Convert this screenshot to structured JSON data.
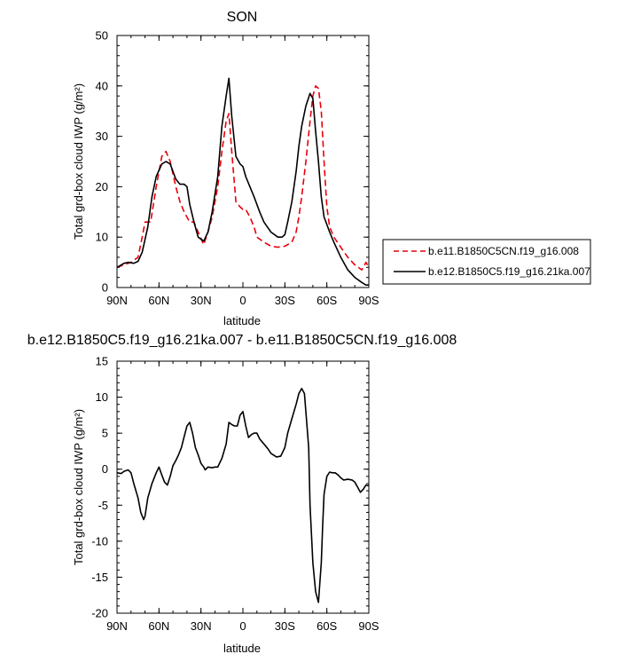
{
  "chart_data": [
    {
      "type": "line",
      "title": "SON",
      "xlabel": "latitude",
      "ylabel": "Total grd-box cloud IWP (g/m²)",
      "x_ticks": [
        "90N",
        "60N",
        "30N",
        "0",
        "30S",
        "60S",
        "90S"
      ],
      "x_tick_values": [
        90,
        60,
        30,
        0,
        -30,
        -60,
        -90
      ],
      "y_ticks": [
        "0",
        "10",
        "20",
        "30",
        "40",
        "50"
      ],
      "ylim": [
        0,
        50
      ],
      "xlim": [
        90,
        -90
      ],
      "legend_position": "right, outside plot",
      "series": [
        {
          "name": "b.e11.B1850C5CN.f19_g16.008",
          "color": "#e8000b",
          "dash": "dashed",
          "x": [
            90,
            85,
            80,
            75,
            72,
            70,
            66,
            62,
            58,
            55,
            52,
            48,
            45,
            42,
            38,
            35,
            32,
            28,
            25,
            22,
            18,
            15,
            12,
            10,
            8,
            5,
            2,
            0,
            -2,
            -5,
            -8,
            -10,
            -15,
            -20,
            -25,
            -30,
            -35,
            -38,
            -40,
            -42,
            -45,
            -48,
            -50,
            -52,
            -54,
            -56,
            -58,
            -60,
            -62,
            -65,
            -70,
            -75,
            -80,
            -85,
            -88,
            -90
          ],
          "y": [
            4,
            4.5,
            5,
            6,
            10,
            13,
            13,
            20,
            26,
            27,
            25,
            20,
            17,
            15,
            13,
            13,
            11,
            8.5,
            11,
            14,
            20,
            27,
            33,
            34.5,
            27,
            17,
            16,
            15.5,
            15.5,
            14,
            12,
            10,
            9,
            8.2,
            8,
            8.2,
            9,
            11,
            14,
            18,
            25,
            33,
            38,
            40,
            39.5,
            35,
            25,
            16,
            12,
            10,
            8,
            6,
            4.5,
            3.5,
            5,
            4
          ]
        },
        {
          "name": "b.e12.B1850C5.f19_g16.21ka.007",
          "color": "#000000",
          "dash": "solid",
          "x": [
            90,
            85,
            82,
            78,
            75,
            72,
            68,
            65,
            62,
            58,
            55,
            52,
            48,
            45,
            42,
            40,
            38,
            35,
            32,
            28,
            25,
            22,
            18,
            15,
            12,
            10,
            8,
            5,
            2,
            0,
            -2,
            -5,
            -8,
            -12,
            -15,
            -20,
            -25,
            -28,
            -30,
            -32,
            -35,
            -38,
            -40,
            -42,
            -45,
            -48,
            -50,
            -52,
            -54,
            -56,
            -58,
            -60,
            -62,
            -65,
            -70,
            -75,
            -80,
            -85,
            -88,
            -90
          ],
          "y": [
            4,
            4.8,
            5,
            4.8,
            5.2,
            7,
            12,
            18,
            22,
            24.5,
            25,
            24.5,
            21.5,
            20.5,
            20.5,
            20,
            16.5,
            13,
            10,
            9.2,
            11,
            15,
            22,
            32,
            38,
            41.5,
            34,
            26,
            24.5,
            24,
            22,
            20,
            18,
            15,
            13,
            11,
            10,
            10,
            10.5,
            13,
            17,
            23,
            28,
            32,
            36,
            38.5,
            37.5,
            31,
            25,
            18,
            14,
            12.5,
            11,
            9,
            6,
            3.5,
            2,
            1,
            0.5,
            0.5
          ]
        }
      ]
    },
    {
      "type": "line",
      "title": "b.e12.B1850C5.f19_g16.21ka.007 - b.e11.B1850C5CN.f19_g16.008",
      "xlabel": "latitude",
      "ylabel": "Total grd-box cloud IWP (g/m²)",
      "x_ticks": [
        "90N",
        "60N",
        "30N",
        "0",
        "30S",
        "60S",
        "90S"
      ],
      "x_tick_values": [
        90,
        60,
        30,
        0,
        -30,
        -60,
        -90
      ],
      "y_ticks": [
        "15",
        "10",
        "5",
        "0",
        "-5",
        "-10",
        "-15",
        "-20"
      ],
      "ylim": [
        -20,
        15
      ],
      "xlim": [
        90,
        -90
      ],
      "series": [
        {
          "color": "#000000",
          "dash": "solid",
          "x": [
            90,
            87,
            85,
            82,
            80,
            78,
            75,
            73,
            71,
            70,
            68,
            65,
            62,
            60,
            58,
            56,
            54,
            52,
            50,
            48,
            46,
            44,
            42,
            40,
            38,
            36,
            34,
            32,
            30,
            28,
            27,
            25,
            22,
            20,
            18,
            15,
            12,
            10,
            8,
            6,
            4,
            2,
            0,
            -2,
            -4,
            -6,
            -8,
            -10,
            -12,
            -15,
            -18,
            -20,
            -24,
            -27,
            -30,
            -32,
            -35,
            -38,
            -40,
            -42,
            -44,
            -45,
            -47,
            -48,
            -50,
            -52,
            -54,
            -56,
            -57,
            -58,
            -60,
            -62,
            -64,
            -66,
            -68,
            -70,
            -72,
            -75,
            -78,
            -80,
            -82,
            -84,
            -86,
            -88,
            -90
          ],
          "y": [
            -0.5,
            -0.6,
            -0.3,
            -0.1,
            -0.5,
            -2,
            -4,
            -6,
            -7,
            -6.5,
            -4,
            -2,
            -0.5,
            0.3,
            -0.8,
            -1.8,
            -2.2,
            -1,
            0.5,
            1.2,
            2,
            3,
            4.5,
            6,
            6.5,
            5,
            3,
            2,
            0.8,
            0.3,
            -0.1,
            0.3,
            0.2,
            0.3,
            0.3,
            1.5,
            3.5,
            6.5,
            6.2,
            6,
            6,
            7.5,
            8,
            6,
            4.4,
            4.8,
            5,
            5,
            4.2,
            3.5,
            2.8,
            2.2,
            1.7,
            1.8,
            3,
            5,
            7,
            9,
            10.5,
            11.2,
            10.5,
            8,
            3,
            -5,
            -13,
            -17,
            -18.5,
            -13,
            -8,
            -3.5,
            -1,
            -0.4,
            -0.5,
            -0.5,
            -0.8,
            -1.2,
            -1.5,
            -1.4,
            -1.5,
            -1.8,
            -2.5,
            -3.2,
            -2.8,
            -2.2,
            -2.3
          ]
        }
      ]
    }
  ],
  "legend": {
    "items": [
      {
        "label": "b.e11.B1850C5CN.f19_g16.008",
        "color": "#e8000b",
        "dash": "dashed"
      },
      {
        "label": "b.e12.B1850C5.f19_g16.21ka.007",
        "color": "#000000",
        "dash": "solid"
      }
    ]
  }
}
